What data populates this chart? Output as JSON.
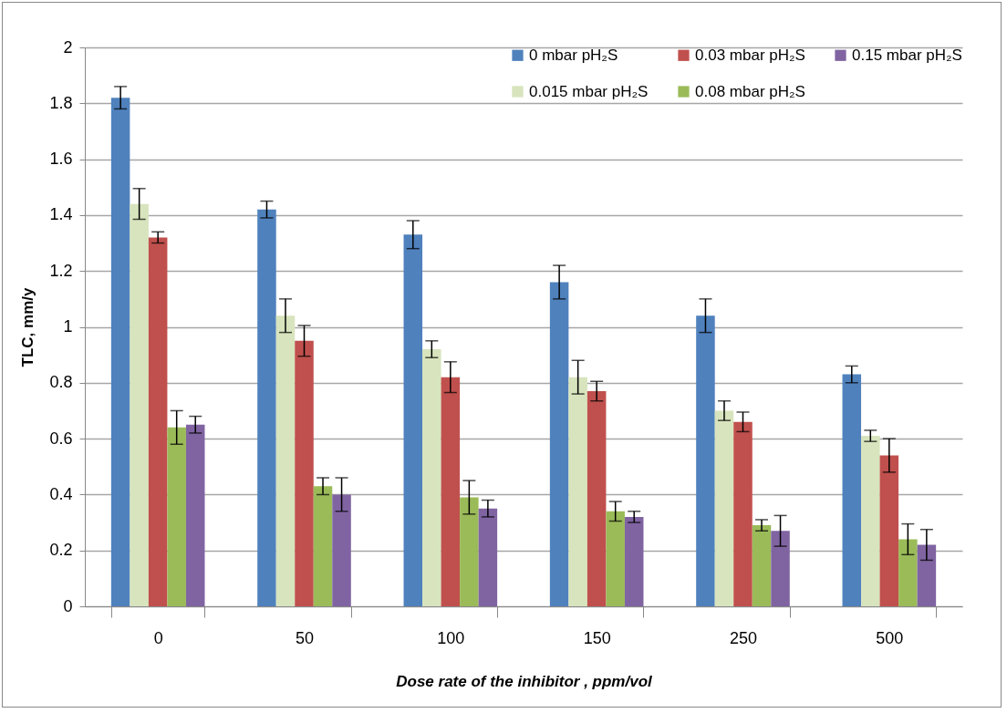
{
  "chart_data": {
    "type": "bar",
    "xlabel": "Dose rate of the inhibitor , ppm/vol",
    "ylabel": "TLC, mm/y",
    "categories": [
      "0",
      "50",
      "100",
      "150",
      "250",
      "500"
    ],
    "series": [
      {
        "name": "0 mbar pH₂S",
        "color": "#4f81bd",
        "values": [
          1.82,
          1.42,
          1.33,
          1.16,
          1.04,
          0.83
        ],
        "errors": [
          0.04,
          0.03,
          0.05,
          0.06,
          0.06,
          0.03
        ]
      },
      {
        "name": "0.015 mbar pH₂S",
        "color": "#d7e4bd",
        "values": [
          1.44,
          1.04,
          0.92,
          0.82,
          0.7,
          0.61
        ],
        "errors": [
          0.055,
          0.06,
          0.03,
          0.06,
          0.035,
          0.02
        ]
      },
      {
        "name": "0.03 mbar pH₂S",
        "color": "#c0504d",
        "values": [
          1.32,
          0.95,
          0.82,
          0.77,
          0.66,
          0.54
        ],
        "errors": [
          0.02,
          0.055,
          0.055,
          0.035,
          0.035,
          0.06
        ]
      },
      {
        "name": "0.08 mbar pH₂S",
        "color": "#9bbb59",
        "values": [
          0.64,
          0.43,
          0.39,
          0.34,
          0.29,
          0.24
        ],
        "errors": [
          0.06,
          0.03,
          0.06,
          0.035,
          0.02,
          0.055
        ]
      },
      {
        "name": "0.15 mbar pH₂S",
        "color": "#8064a2",
        "values": [
          0.65,
          0.4,
          0.35,
          0.32,
          0.27,
          0.22
        ],
        "errors": [
          0.03,
          0.06,
          0.03,
          0.02,
          0.055,
          0.055
        ]
      }
    ],
    "ylim": [
      0,
      2
    ],
    "yticks": [
      0,
      0.2,
      0.4,
      0.6,
      0.8,
      1,
      1.2,
      1.4,
      1.6,
      1.8,
      2
    ],
    "grid": "y",
    "legend": "top right"
  }
}
